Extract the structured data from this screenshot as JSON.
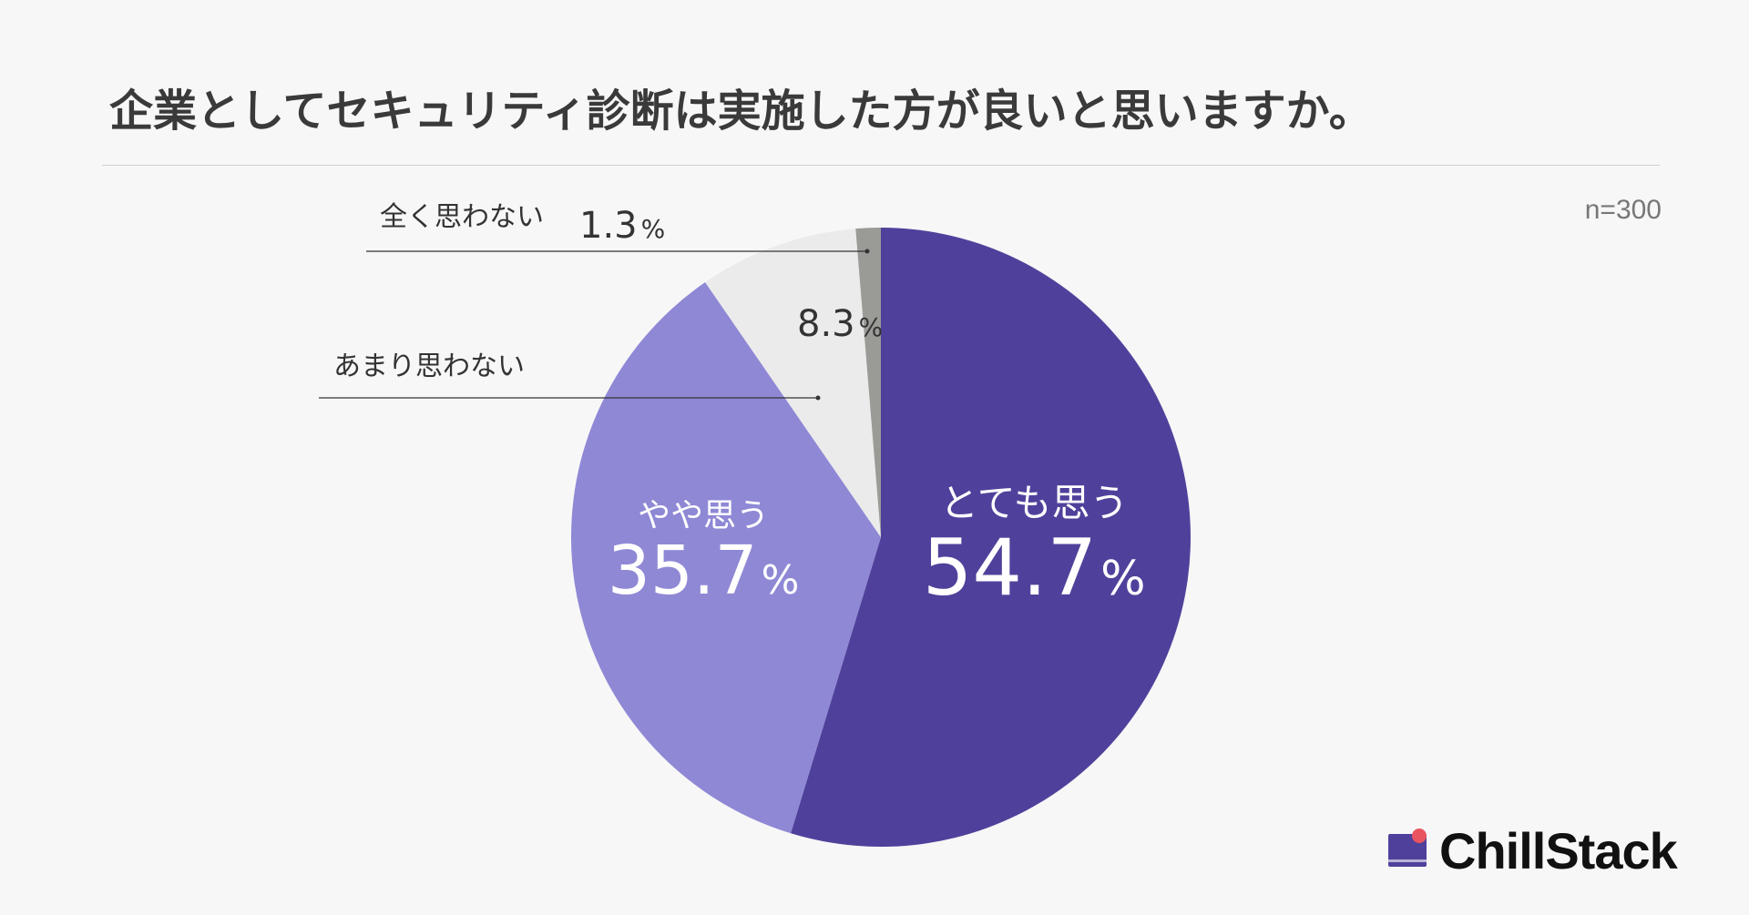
{
  "header": {
    "title": "企業としてセキュリティ診断は実施した方が良いと思いますか。",
    "sample": "n=300"
  },
  "logo": {
    "name": "ChillStack",
    "mark_color": "#4f419b",
    "dot_color": "#e8545f"
  },
  "chart_data": {
    "type": "pie",
    "title": "企業としてセキュリティ診断は実施した方が良いと思いますか。",
    "unit": "%",
    "slices": [
      {
        "label": "とても思う",
        "value": 54.7,
        "display": "54.7",
        "color": "#4f419b"
      },
      {
        "label": "やや思う",
        "value": 35.7,
        "display": "35.7",
        "color": "#8f88d5"
      },
      {
        "label": "あまり思わない",
        "value": 8.3,
        "display": "8.3",
        "color": "#ebebeb"
      },
      {
        "label": "全く思わない",
        "value": 1.3,
        "display": "1.3",
        "color": "#9a9b96"
      }
    ],
    "legend": "none",
    "start": "top",
    "direction": "clockwise"
  }
}
